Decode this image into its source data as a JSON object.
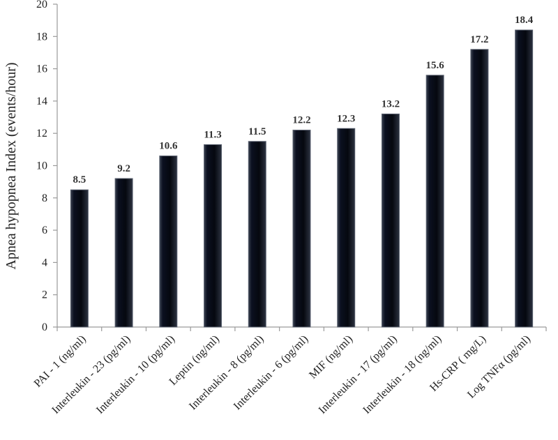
{
  "chart_data": {
    "type": "bar",
    "title": "",
    "xlabel": "",
    "ylabel": "Apnea hypopnea Index (events/hour)",
    "ylim": [
      0,
      20
    ],
    "yticks": [
      0,
      2,
      4,
      6,
      8,
      10,
      12,
      14,
      16,
      18,
      20
    ],
    "grid": false,
    "categories": [
      "PAI - 1 (ng/ml)",
      "Interleukin - 23 (pg/ml)",
      "Interleukin - 10 (pg/ml)",
      "Leptin (ng/ml)",
      "Interleukin - 8 (pg/ml)",
      "Interleukin - 6 (pg/ml)",
      "MIF (ng/ml)",
      "Interleukin - 17 (pg/ml)",
      "Interleukin - 18 (ng/ml)",
      "Hs-CRP ( mg/L)",
      "Log TNFα (pg/ml)"
    ],
    "values": [
      8.5,
      9.2,
      10.6,
      11.3,
      11.5,
      12.2,
      12.3,
      13.2,
      15.6,
      17.2,
      18.4
    ],
    "data_labels": [
      "8.5",
      "9.2",
      "10.6",
      "11.3",
      "11.5",
      "12.2",
      "12.3",
      "13.2",
      "15.6",
      "17.2",
      "18.4"
    ],
    "colors": {
      "bar": "#0a0f1c",
      "bar_edge": "#5b6270",
      "axis": "#9a9a9a"
    }
  }
}
